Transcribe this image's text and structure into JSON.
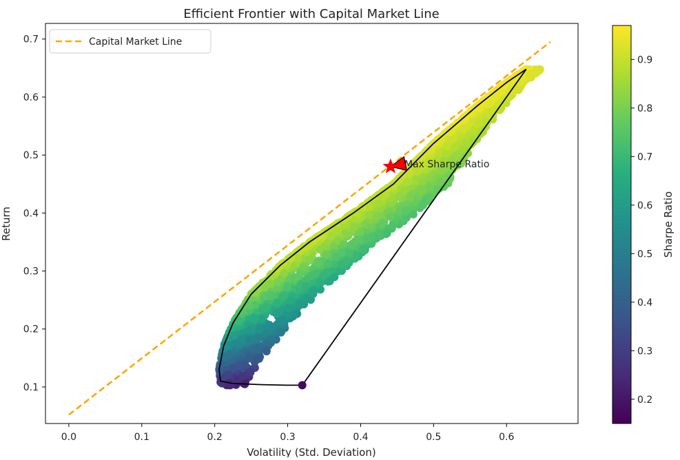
{
  "chart_data": {
    "type": "scatter",
    "title": "Efficient Frontier with Capital Market Line",
    "xlabel": "Volatility (Std. Deviation)",
    "ylabel": "Return",
    "xlim": [
      -0.032,
      0.698
    ],
    "ylim": [
      0.037,
      0.727
    ],
    "xticks": [
      0.0,
      0.1,
      0.2,
      0.3,
      0.4,
      0.5,
      0.6
    ],
    "xtick_labels": [
      "0.0",
      "0.1",
      "0.2",
      "0.3",
      "0.4",
      "0.5",
      "0.6"
    ],
    "yticks": [
      0.1,
      0.2,
      0.3,
      0.4,
      0.5,
      0.6,
      0.7
    ],
    "ytick_labels": [
      "0.1",
      "0.2",
      "0.3",
      "0.4",
      "0.5",
      "0.6",
      "0.7"
    ],
    "grid": false,
    "legend": {
      "location": "upper-left",
      "entries": [
        {
          "label": "Capital Market Line",
          "color": "#ffa500",
          "style": "dashed"
        }
      ]
    },
    "colorbar": {
      "label": "Sharpe Ratio",
      "range": [
        0.15,
        0.97
      ],
      "ticks": [
        0.2,
        0.3,
        0.4,
        0.5,
        0.6,
        0.7,
        0.8,
        0.9
      ],
      "tick_labels": [
        "0.2",
        "0.3",
        "0.4",
        "0.5",
        "0.6",
        "0.7",
        "0.8",
        "0.9"
      ],
      "colormap": "viridis"
    },
    "capital_market_line": {
      "name": "Capital Market Line",
      "x": [
        0.0,
        0.66
      ],
      "y": [
        0.052,
        0.695
      ],
      "color": "#ffa500"
    },
    "frontier_curve": {
      "x": [
        0.32,
        0.3,
        0.265,
        0.225,
        0.208,
        0.206,
        0.212,
        0.225,
        0.25,
        0.29,
        0.33,
        0.39,
        0.445,
        0.5,
        0.56,
        0.6,
        0.627
      ],
      "y": [
        0.103,
        0.103,
        0.104,
        0.106,
        0.11,
        0.13,
        0.17,
        0.21,
        0.26,
        0.31,
        0.35,
        0.4,
        0.45,
        0.52,
        0.585,
        0.625,
        0.648
      ],
      "color": "#000000"
    },
    "hull_upper_segment": {
      "x": [
        0.627,
        0.32
      ],
      "y": [
        0.648,
        0.103
      ]
    },
    "endpoint_marker": {
      "x": 0.32,
      "y": 0.103,
      "sharpe": 0.17
    },
    "max_sharpe": {
      "x": 0.441,
      "y": 0.48,
      "marker": "star",
      "color": "#ff0000"
    },
    "annotation": {
      "text": "Max Sharpe Ratio",
      "x": 0.46,
      "y": 0.485,
      "arrow_to": [
        0.441,
        0.48
      ]
    },
    "scatter_summary": {
      "n_points": 2600,
      "frontier_sharpe_min": 0.15,
      "frontier_sharpe_max": 0.97
    }
  }
}
